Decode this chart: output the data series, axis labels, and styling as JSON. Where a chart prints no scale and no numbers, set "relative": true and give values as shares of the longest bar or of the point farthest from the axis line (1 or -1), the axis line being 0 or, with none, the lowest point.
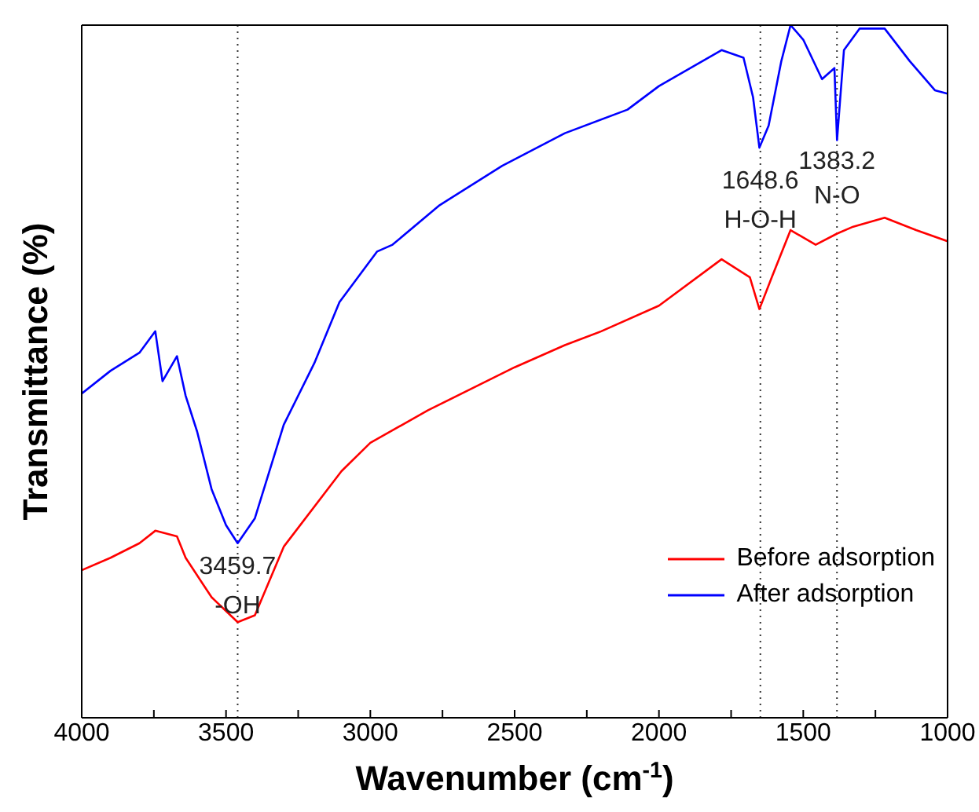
{
  "chart_data": {
    "type": "line",
    "xlabel": "Wavenumber (cm$^{-1}$)",
    "ylabel": "Transmittance (%)",
    "relative": true,
    "xlim": [
      4000,
      1000
    ],
    "xticks": [
      4000,
      {
        "value": 3750,
        "label": null
      },
      3500,
      {
        "value": 3250,
        "label": null
      },
      3000,
      {
        "value": 2750,
        "label": null
      },
      2500,
      {
        "value": 2250,
        "label": null
      },
      2000,
      {
        "value": 1750,
        "label": null
      },
      1500,
      {
        "value": 1250,
        "label": null
      },
      1000
    ],
    "tick_labels": "x",
    "legend": "bottom right",
    "grid": false,
    "marker": "none",
    "line_style": "solid",
    "series": [
      {
        "name": "Before adsorption",
        "color": "#ff0000",
        "x": [
          4000,
          3900,
          3800,
          3745,
          3670,
          3640,
          3550,
          3459.7,
          3400,
          3300,
          3100,
          3000,
          2800,
          2500,
          2326,
          2200,
          2000,
          1783,
          1685,
          1652,
          1609,
          1544,
          1457,
          1383,
          1327,
          1218,
          1109,
          1000
        ],
        "values": [
          0.213,
          0.231,
          0.252,
          0.27,
          0.262,
          0.231,
          0.174,
          0.138,
          0.148,
          0.247,
          0.356,
          0.397,
          0.444,
          0.506,
          0.538,
          0.558,
          0.595,
          0.662,
          0.636,
          0.59,
          0.636,
          0.704,
          0.683,
          0.699,
          0.709,
          0.722,
          0.704,
          0.688
        ]
      },
      {
        "name": "After adsorption",
        "color": "#0000ff",
        "x": [
          4000,
          3900,
          3800,
          3745,
          3720,
          3670,
          3640,
          3600,
          3550,
          3500,
          3459.7,
          3400,
          3300,
          3194,
          3107,
          2977,
          2923,
          2760,
          2543,
          2326,
          2109,
          2000,
          1891,
          1783,
          1707,
          1674,
          1652,
          1620,
          1576,
          1544,
          1500,
          1435,
          1392,
          1383,
          1359,
          1305,
          1218,
          1131,
          1044,
          1000
        ],
        "values": [
          0.468,
          0.501,
          0.527,
          0.558,
          0.486,
          0.522,
          0.465,
          0.413,
          0.33,
          0.278,
          0.252,
          0.288,
          0.423,
          0.512,
          0.6,
          0.673,
          0.683,
          0.74,
          0.797,
          0.844,
          0.878,
          0.912,
          0.938,
          0.964,
          0.953,
          0.896,
          0.823,
          0.855,
          0.948,
          1.0,
          0.979,
          0.922,
          0.938,
          0.834,
          0.964,
          0.995,
          0.995,
          0.948,
          0.906,
          0.901
        ]
      }
    ],
    "ref_lines": [
      {
        "axis": "x",
        "value": 3459.7,
        "color": "#333333",
        "line_style": "dotted"
      },
      {
        "axis": "x",
        "value": 1648.6,
        "color": "#333333",
        "line_style": "dotted"
      },
      {
        "axis": "x",
        "value": 1383.2,
        "color": "#333333",
        "line_style": "dotted"
      }
    ],
    "annotations": [
      {
        "text": "3459.7",
        "x": 3459.7,
        "y": 0.22
      },
      {
        "text": "-OH",
        "x": 3459.7,
        "y": 0.164
      },
      {
        "text": "1648.6",
        "x": 1648.6,
        "y": 0.777
      },
      {
        "text": "H-O-H",
        "x": 1648.6,
        "y": 0.72
      },
      {
        "text": "1383.2",
        "x": 1383.2,
        "y": 0.805
      },
      {
        "text": "N-O",
        "x": 1383.2,
        "y": 0.756
      }
    ]
  }
}
